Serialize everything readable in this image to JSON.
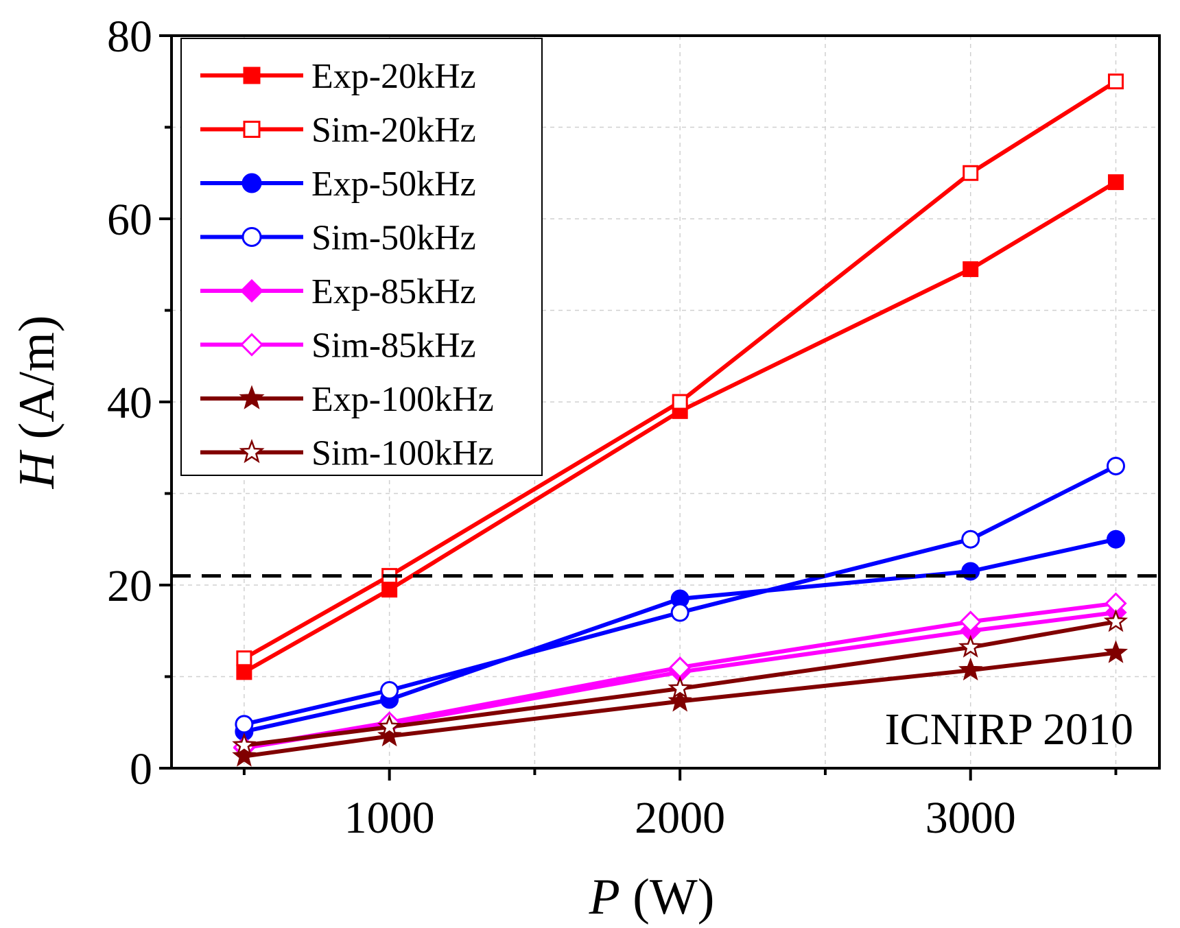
{
  "chart_data": {
    "type": "line",
    "title": "",
    "xlabel": {
      "symbol": "P",
      "unit": "(W)"
    },
    "ylabel": {
      "symbol": "H",
      "unit": "(A/m)"
    },
    "xlim": [
      250,
      3650
    ],
    "ylim": [
      0,
      80
    ],
    "x_ticks": [
      1000,
      2000,
      3000
    ],
    "x_minor_ticks": [
      500,
      1500,
      2500,
      3500
    ],
    "y_ticks": [
      0,
      20,
      40,
      60,
      80
    ],
    "y_minor_ticks": [
      10,
      30,
      50,
      70
    ],
    "grid": true,
    "legend_position": "top-left",
    "x": [
      500,
      1000,
      2000,
      3000,
      3500
    ],
    "series": [
      {
        "name": "Exp-20kHz",
        "values": [
          10.5,
          19.5,
          39,
          54.5,
          64
        ],
        "color": "#ff0000",
        "marker": "square",
        "filled": true
      },
      {
        "name": "Sim-20kHz",
        "values": [
          12,
          21,
          40,
          65,
          75
        ],
        "color": "#ff0000",
        "marker": "square",
        "filled": false
      },
      {
        "name": "Exp-50kHz",
        "values": [
          4,
          7.5,
          18.5,
          21.5,
          25
        ],
        "color": "#0000ff",
        "marker": "circle",
        "filled": true
      },
      {
        "name": "Sim-50kHz",
        "values": [
          4.8,
          8.5,
          17,
          25,
          33
        ],
        "color": "#0000ff",
        "marker": "circle",
        "filled": false
      },
      {
        "name": "Exp-85kHz",
        "values": [
          2.2,
          4.8,
          10.5,
          15,
          17
        ],
        "color": "#ff00ff",
        "marker": "diamond",
        "filled": true
      },
      {
        "name": "Sim-85kHz",
        "values": [
          2.3,
          5,
          11,
          16,
          18
        ],
        "color": "#ff00ff",
        "marker": "diamond",
        "filled": false
      },
      {
        "name": "Exp-100kHz",
        "values": [
          1.3,
          3.5,
          7.3,
          10.7,
          12.6
        ],
        "color": "#800000",
        "marker": "star",
        "filled": true
      },
      {
        "name": "Sim-100kHz",
        "values": [
          2.5,
          4.5,
          8.7,
          13.2,
          16
        ],
        "color": "#800000",
        "marker": "star",
        "filled": false
      }
    ],
    "reference_line": {
      "label": "ICNIRP 2010",
      "y": 21,
      "style": "dashed",
      "color": "#000000"
    }
  }
}
